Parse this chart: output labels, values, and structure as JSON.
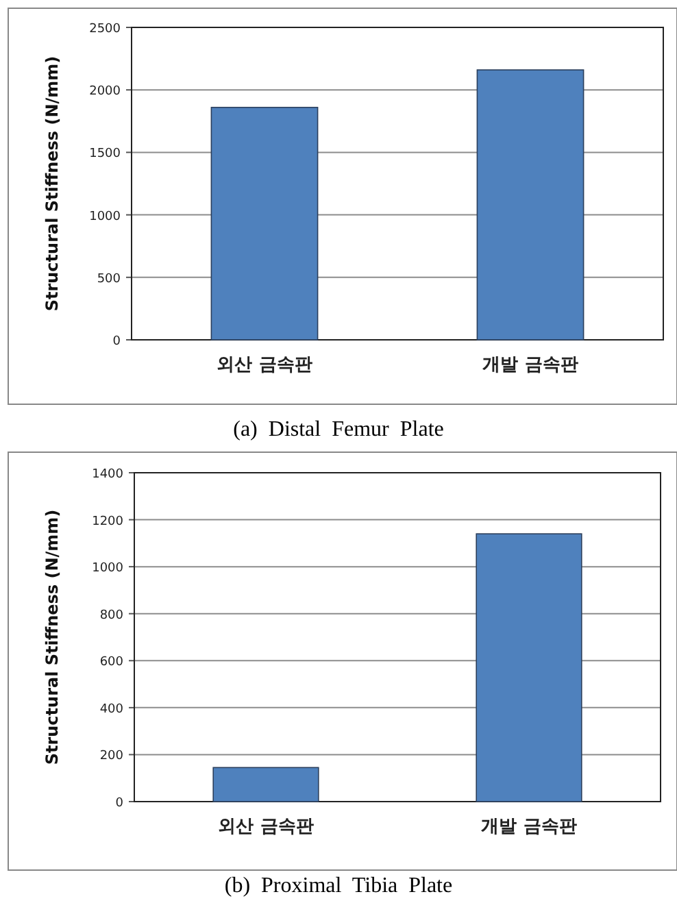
{
  "chart_data": [
    {
      "type": "bar",
      "title": "(a)  Distal  Femur  Plate",
      "ylabel": "Structural Stiffness (N/mm)",
      "categories": [
        "외산 금속판",
        "개발 금속판"
      ],
      "values": [
        1860,
        2160
      ],
      "color": "#4f81bd",
      "ylim": [
        0,
        2500
      ],
      "yticks": [
        0,
        500,
        1000,
        1500,
        2000,
        2500
      ],
      "grid": "y"
    },
    {
      "type": "bar",
      "title": "(b)  Proximal  Tibia  Plate",
      "ylabel": "Structural Stiffness (N/mm)",
      "categories": [
        "외산 금속판",
        "개발 금속판"
      ],
      "values": [
        145,
        1140
      ],
      "color": "#4f81bd",
      "ylim": [
        0,
        1400
      ],
      "yticks": [
        0,
        200,
        400,
        600,
        800,
        1000,
        1200,
        1400
      ],
      "grid": "y"
    }
  ]
}
